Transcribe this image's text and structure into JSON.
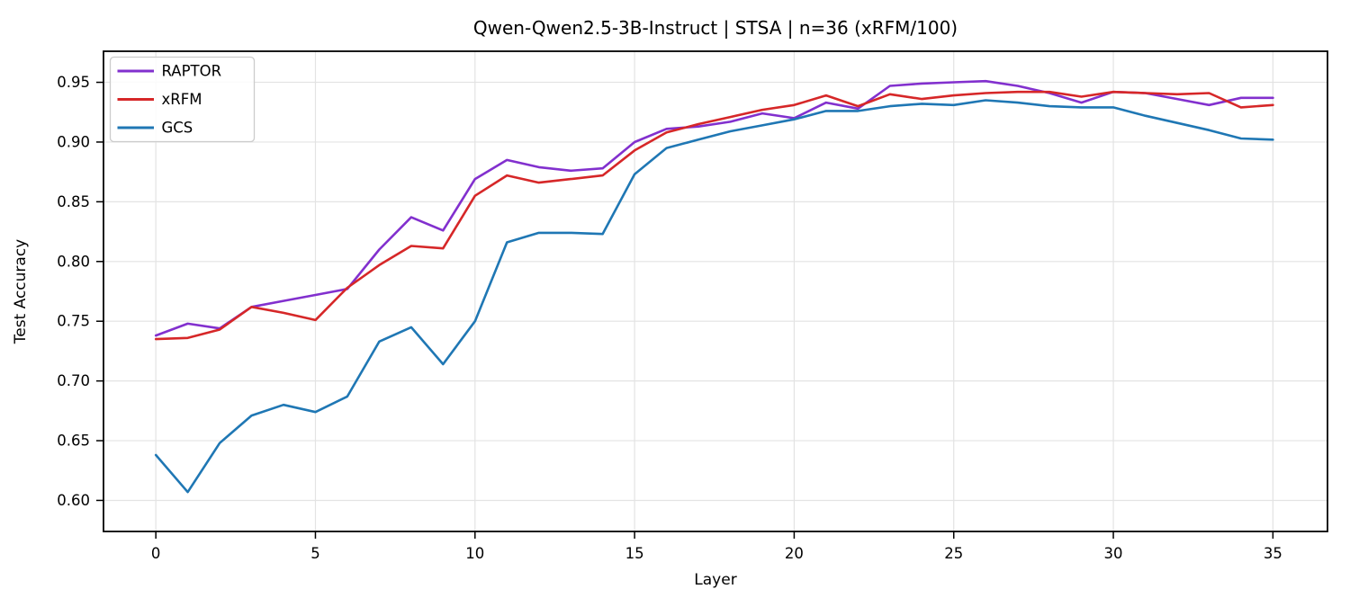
{
  "chart_data": {
    "type": "line",
    "title": "Qwen-Qwen2.5-3B-Instruct | STSA | n=36 (xRFM/100)",
    "xlabel": "Layer",
    "ylabel": "Test Accuracy",
    "grid": true,
    "grid_color": "#e3e3e3",
    "legend_position": "upper left",
    "legend_border_color": "#cccccc",
    "spine_color": "#000000",
    "xticks": [
      0,
      5,
      10,
      15,
      20,
      25,
      30,
      35
    ],
    "yticks": [
      0.6,
      0.65,
      0.7,
      0.75,
      0.8,
      0.85,
      0.9,
      0.95
    ],
    "xlim": [
      -1.64,
      36.71
    ],
    "ylim": [
      0.574,
      0.976
    ],
    "x": [
      0,
      1,
      2,
      3,
      4,
      5,
      6,
      7,
      8,
      9,
      10,
      11,
      12,
      13,
      14,
      15,
      16,
      17,
      18,
      19,
      20,
      21,
      22,
      23,
      24,
      25,
      26,
      27,
      28,
      29,
      30,
      31,
      32,
      33,
      34,
      35
    ],
    "series": [
      {
        "name": "RAPTOR",
        "color": "#8230ce",
        "values": [
          0.738,
          0.748,
          0.744,
          0.762,
          0.767,
          0.772,
          0.777,
          0.81,
          0.837,
          0.826,
          0.869,
          0.885,
          0.879,
          0.876,
          0.878,
          0.9,
          0.911,
          0.913,
          0.917,
          0.924,
          0.92,
          0.933,
          0.928,
          0.947,
          0.949,
          0.95,
          0.951,
          0.947,
          0.941,
          0.933,
          0.942,
          0.941,
          0.936,
          0.931,
          0.937,
          0.937
        ]
      },
      {
        "name": "xRFM",
        "color": "#d62728",
        "values": [
          0.735,
          0.736,
          0.743,
          0.762,
          0.757,
          0.751,
          0.778,
          0.797,
          0.813,
          0.811,
          0.855,
          0.872,
          0.866,
          0.869,
          0.872,
          0.893,
          0.908,
          0.915,
          0.921,
          0.927,
          0.931,
          0.939,
          0.93,
          0.94,
          0.936,
          0.939,
          0.941,
          0.942,
          0.942,
          0.938,
          0.942,
          0.941,
          0.94,
          0.941,
          0.929,
          0.931
        ]
      },
      {
        "name": "GCS",
        "color": "#1f77b4",
        "values": [
          0.638,
          0.607,
          0.648,
          0.671,
          0.68,
          0.674,
          0.687,
          0.733,
          0.745,
          0.714,
          0.75,
          0.816,
          0.824,
          0.824,
          0.823,
          0.873,
          0.895,
          0.902,
          0.909,
          0.914,
          0.919,
          0.926,
          0.926,
          0.93,
          0.932,
          0.931,
          0.935,
          0.933,
          0.93,
          0.929,
          0.929,
          0.922,
          0.916,
          0.91,
          0.903,
          0.902
        ]
      }
    ]
  }
}
